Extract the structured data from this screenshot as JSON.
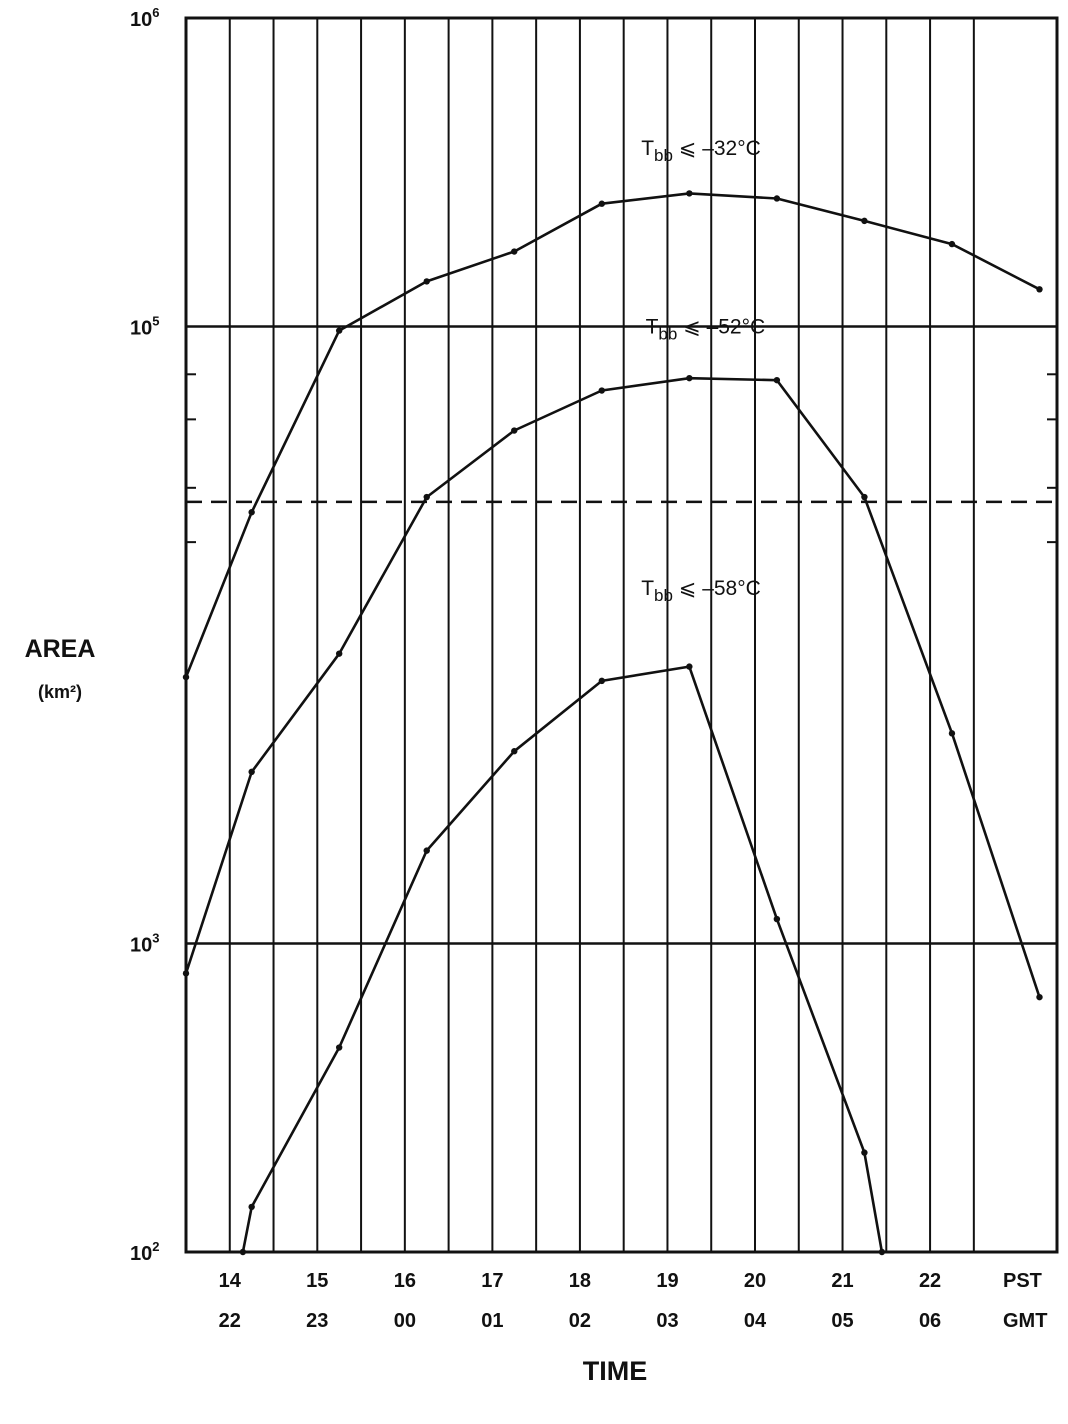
{
  "chart_data": {
    "type": "line",
    "title": "",
    "xlabel": "TIME",
    "ylabel": "AREA",
    "ylabel_unit": "(km²)",
    "y_scale": "log",
    "ylim": [
      100,
      1000000
    ],
    "y_tick_labels": [
      {
        "value": 1000000,
        "base": "10",
        "exp": "6"
      },
      {
        "value": 100000,
        "base": "10",
        "exp": "5"
      },
      {
        "value": 1000,
        "base": "10",
        "exp": "3"
      },
      {
        "value": 100,
        "base": "10",
        "exp": "2"
      }
    ],
    "xlim": [
      13.0,
      22.95
    ],
    "x_ticks_pst": [
      "14",
      "15",
      "16",
      "17",
      "18",
      "19",
      "20",
      "21",
      "22"
    ],
    "x_ticks_gmt": [
      "22",
      "23",
      "00",
      "01",
      "02",
      "03",
      "04",
      "05",
      "06"
    ],
    "x_unit_pst": "PST",
    "x_unit_gmt": "GMT",
    "reference_line": {
      "style": "dashed",
      "y": 27000
    },
    "grid": true,
    "series": [
      {
        "name": "T",
        "name_sub": "bb",
        "name_suffix": " ⩽  –32°C",
        "x": [
          13.0,
          13.75,
          14.75,
          15.75,
          16.75,
          17.75,
          18.75,
          19.75,
          20.75,
          21.75,
          22.75
        ],
        "y": [
          7300,
          25000,
          97000,
          140000,
          175000,
          250000,
          270000,
          260000,
          220000,
          185000,
          132000
        ]
      },
      {
        "name": "T",
        "name_sub": "bb",
        "name_suffix": " ⩽  –52°C",
        "x": [
          13.0,
          13.75,
          14.75,
          15.75,
          16.75,
          17.75,
          18.75,
          19.75,
          20.75,
          21.75,
          22.75
        ],
        "y": [
          800,
          3600,
          8700,
          28000,
          46000,
          62000,
          68000,
          67000,
          28000,
          4800,
          670
        ]
      },
      {
        "name": "T",
        "name_sub": "bb",
        "name_suffix": " ⩽  –58°C",
        "x": [
          13.65,
          13.75,
          14.75,
          15.75,
          16.75,
          17.75,
          18.75,
          19.75,
          20.75,
          20.95
        ],
        "y": [
          100,
          140,
          460,
          2000,
          4200,
          7100,
          7900,
          1200,
          210,
          100
        ]
      }
    ],
    "label_anchors": [
      {
        "x": 18.2,
        "y": 360000
      },
      {
        "x": 18.25,
        "y": 95000
      },
      {
        "x": 18.2,
        "y": 13500
      }
    ]
  }
}
